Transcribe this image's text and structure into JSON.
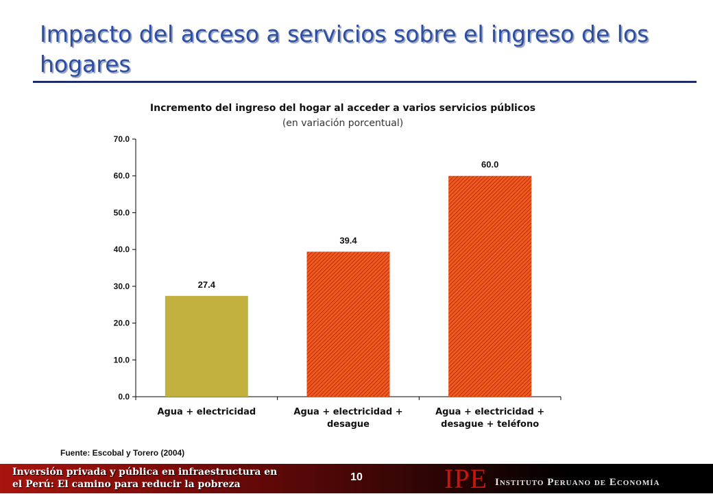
{
  "slide": {
    "title": "Impacto del acceso a servicios sobre el ingreso de los hogares",
    "source": "Fuente: Escobal y Torero (2004)",
    "page_number": "10"
  },
  "footer": {
    "left_line1": "Inversión privada y pública en infraestructura en",
    "left_line2": "el Perú: El camino para reducir la pobreza",
    "logo": "IPE",
    "institute": "Instituto Peruano de Economía"
  },
  "chart_data": {
    "type": "bar",
    "title": "Incremento del ingreso del hogar al acceder a varios servicios públicos",
    "subtitle": "(en variación porcentual)",
    "categories": [
      [
        "Agua + electricidad"
      ],
      [
        "Agua + electricidad +",
        "desague"
      ],
      [
        "Agua + electricidad +",
        "desague + teléfono"
      ]
    ],
    "values": [
      27.4,
      39.4,
      60.0
    ],
    "value_labels": [
      "27.4",
      "39.4",
      "60.0"
    ],
    "ylim": [
      0,
      70
    ],
    "yticks": [
      "0.0",
      "10.0",
      "20.0",
      "30.0",
      "40.0",
      "50.0",
      "60.0",
      "70.0"
    ],
    "colors": [
      "#c2b13f",
      "#e8491a",
      "#e8491a"
    ],
    "fills": [
      "solid",
      "hatched",
      "hatched"
    ],
    "grid": false,
    "legend": "none"
  }
}
